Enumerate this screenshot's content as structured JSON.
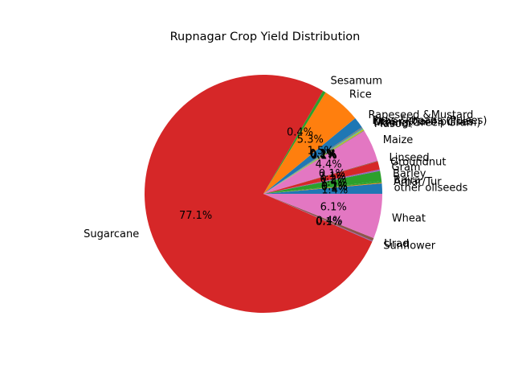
{
  "chart_data": {
    "type": "pie",
    "title": "Rupnagar Crop Yield Distribution",
    "start_angle_deg": 0,
    "direction": "counterclockwise",
    "slices": [
      {
        "label": "other oilseeds",
        "percent": 1.4,
        "pct_label": "1.4%",
        "color": "#1f77b4"
      },
      {
        "label": "Arhar/Tur",
        "percent": 0.1,
        "pct_label": "0.1%",
        "color": "#ff7f0e"
      },
      {
        "label": "Bajra",
        "percent": 0.2,
        "pct_label": "0.2%",
        "color": "#2ca02c"
      },
      {
        "label": "Barley",
        "percent": 1.4,
        "pct_label": "1.4%",
        "color": "#2ca02c"
      },
      {
        "label": "Gram",
        "percent": 0.2,
        "pct_label": "0.2%",
        "color": "#9467bd"
      },
      {
        "label": "Groundnut",
        "percent": 1.1,
        "pct_label": "1.1%",
        "color": "#d62728"
      },
      {
        "label": "Linseed",
        "percent": 0.1,
        "pct_label": "0.1%",
        "color": "#8c564b"
      },
      {
        "label": "Maize",
        "percent": 4.4,
        "pct_label": "4.4%",
        "color": "#e377c2"
      },
      {
        "label": "Masoor",
        "percent": 0.1,
        "pct_label": "0.1%",
        "color": "#7f7f7f"
      },
      {
        "label": "Moong(Green Gram)",
        "percent": 0.2,
        "pct_label": "0.2%",
        "color": "#bcbd22"
      },
      {
        "label": "Other Kharif pulses",
        "percent": 0.1,
        "pct_label": "0.1%",
        "color": "#17becf"
      },
      {
        "label": "Peas & beans (Pulses)",
        "percent": 0.2,
        "pct_label": "0.2%",
        "color": "#7f7f7f"
      },
      {
        "label": "Rapeseed &Mustard",
        "percent": 1.5,
        "pct_label": "1.5%",
        "color": "#1f77b4"
      },
      {
        "label": "Rice",
        "percent": 5.3,
        "pct_label": "5.3%",
        "color": "#ff7f0e"
      },
      {
        "label": "Sesamum",
        "percent": 0.4,
        "pct_label": "0.4%",
        "color": "#2ca02c"
      },
      {
        "label": "Sugarcane",
        "percent": 77.1,
        "pct_label": "77.1%",
        "color": "#d62728"
      },
      {
        "label": "Sunflower",
        "percent": 0.1,
        "pct_label": "0.1%",
        "color": "#9467bd"
      },
      {
        "label": "Urad",
        "percent": 0.4,
        "pct_label": "0.4%",
        "color": "#8c564b"
      },
      {
        "label": "Wheat",
        "percent": 6.1,
        "pct_label": "6.1%",
        "color": "#e377c2"
      }
    ]
  }
}
